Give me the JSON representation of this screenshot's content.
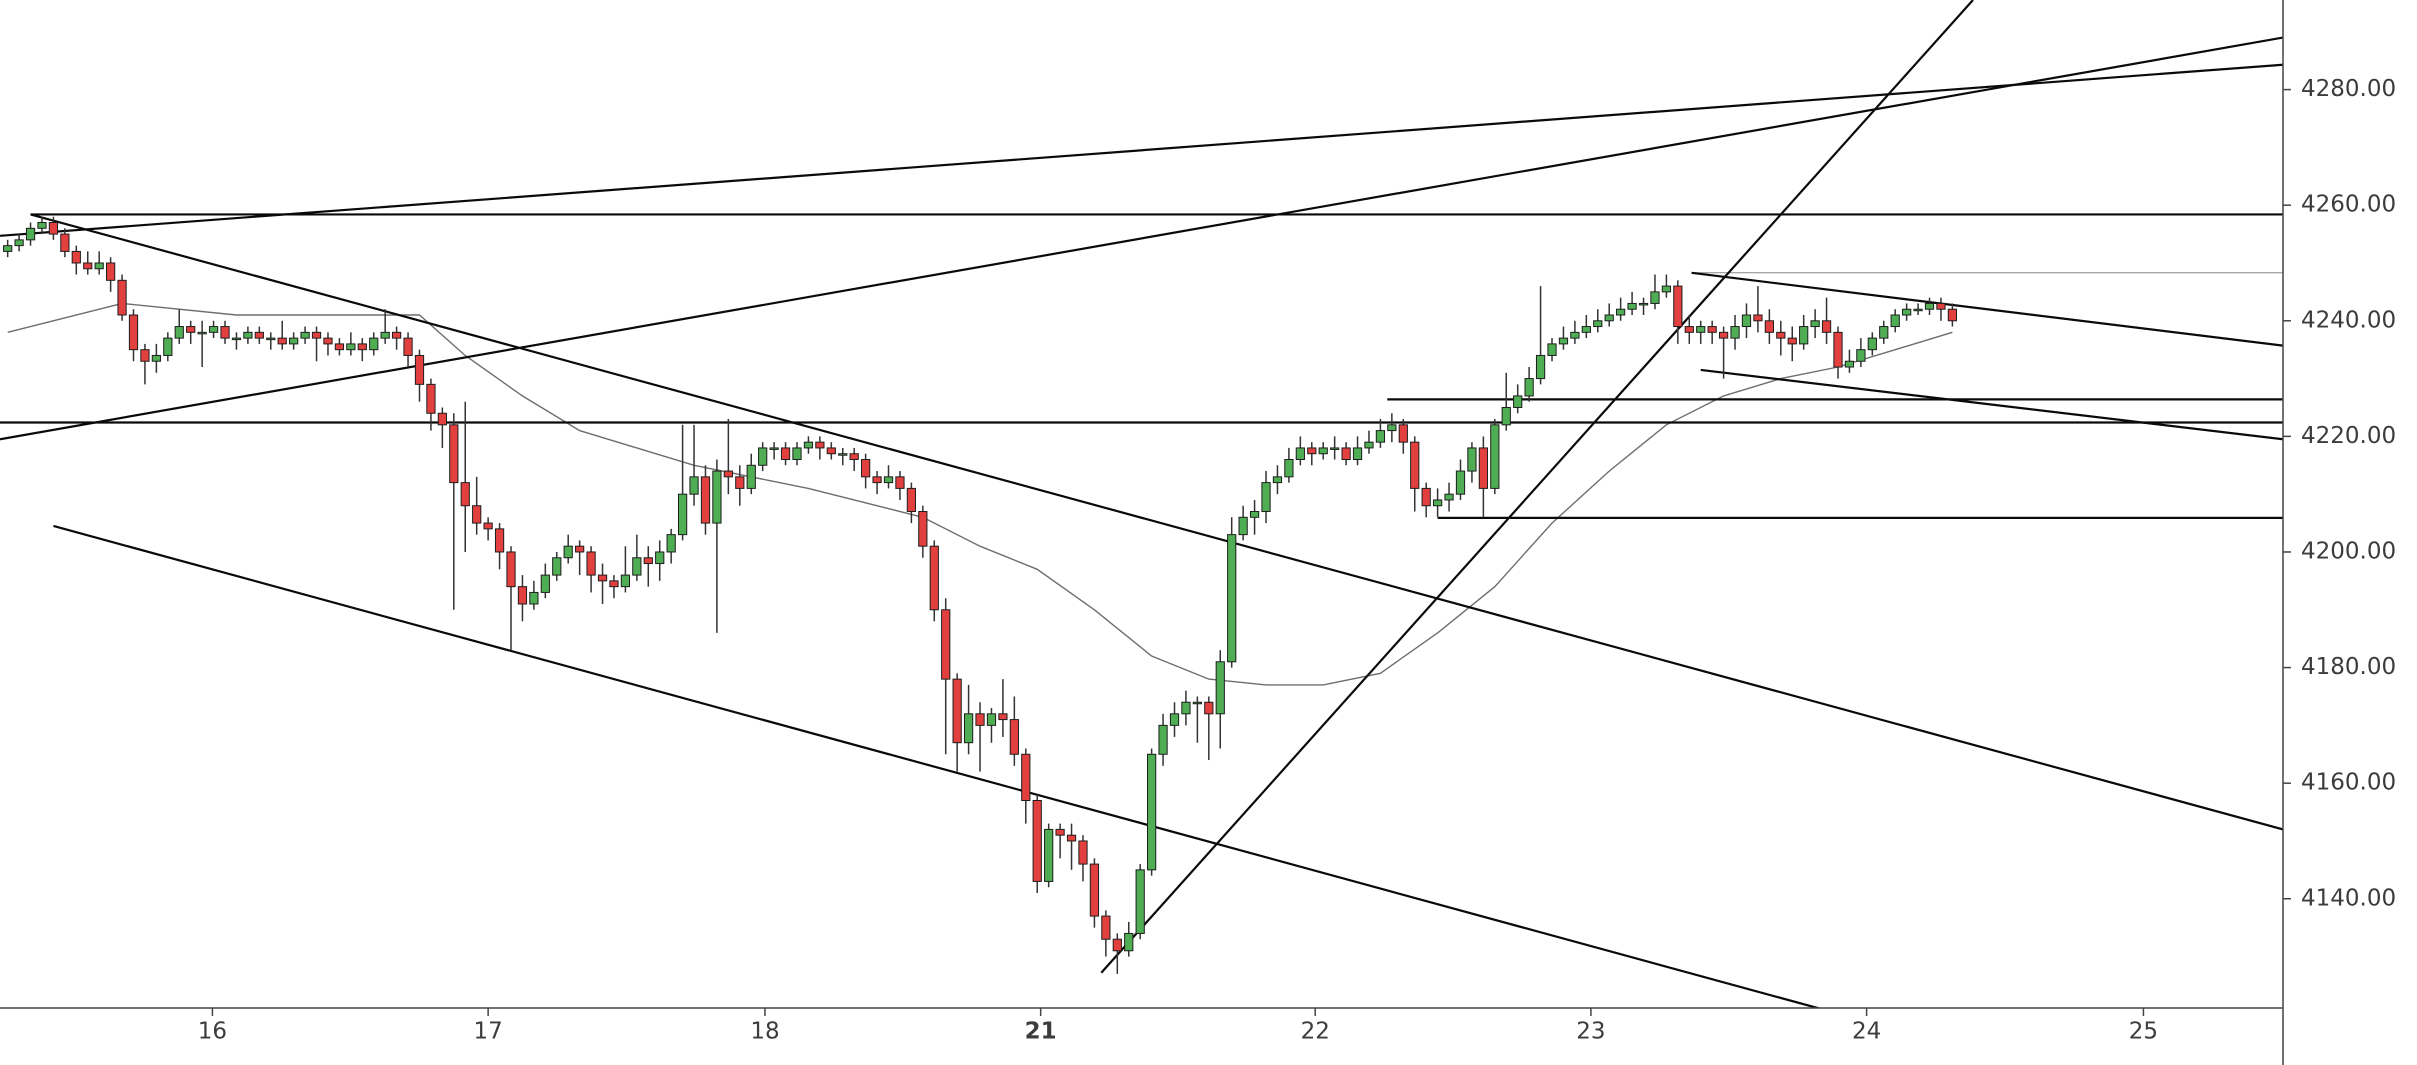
{
  "chart_data": {
    "type": "candlestick",
    "colors": {
      "up": "#4fae54",
      "down": "#e2403f",
      "outline": "#1e1e1e",
      "wick": "#333333"
    },
    "xlim": [
      -0.67,
      198.9
    ],
    "xticks": [
      {
        "value": 17.9,
        "label": "16"
      },
      {
        "value": 42.0,
        "label": "17"
      },
      {
        "value": 66.2,
        "label": "18"
      },
      {
        "value": 90.3,
        "label": "21",
        "bold": true
      },
      {
        "value": 114.3,
        "label": "22"
      },
      {
        "value": 138.4,
        "label": "23"
      },
      {
        "value": 162.5,
        "label": "24"
      },
      {
        "value": 186.7,
        "label": "25"
      }
    ],
    "ylim": [
      4121.1,
      4295.5
    ],
    "yticks": [
      {
        "value": 4140,
        "label": "4140.00"
      },
      {
        "value": 4160,
        "label": "4160.00"
      },
      {
        "value": 4180,
        "label": "4180.00"
      },
      {
        "value": 4200,
        "label": "4200.00"
      },
      {
        "value": 4220,
        "label": "4220.00"
      },
      {
        "value": 4240,
        "label": "4240.00"
      },
      {
        "value": 4260,
        "label": "4260.00"
      },
      {
        "value": 4280,
        "label": "4280.00"
      }
    ],
    "ohlc": [
      [
        4252,
        4254,
        4251,
        4253
      ],
      [
        4253,
        4255,
        4252,
        4254
      ],
      [
        4254,
        4257,
        4253,
        4256
      ],
      [
        4256,
        4258,
        4255,
        4257
      ],
      [
        4257,
        4258,
        4254,
        4255
      ],
      [
        4255,
        4256,
        4251,
        4252
      ],
      [
        4252,
        4253,
        4248,
        4250
      ],
      [
        4250,
        4252,
        4248,
        4249
      ],
      [
        4249,
        4252,
        4248,
        4250
      ],
      [
        4250,
        4251,
        4245,
        4247
      ],
      [
        4247,
        4248,
        4240,
        4241
      ],
      [
        4241,
        4242,
        4233,
        4235
      ],
      [
        4235,
        4236,
        4229,
        4233
      ],
      [
        4233,
        4236,
        4231,
        4234
      ],
      [
        4234,
        4238,
        4233,
        4237
      ],
      [
        4237,
        4242,
        4236,
        4239
      ],
      [
        4239,
        4240,
        4236,
        4238
      ],
      [
        4238,
        4240,
        4232,
        4238
      ],
      [
        4238,
        4240,
        4237,
        4239
      ],
      [
        4239,
        4240,
        4236,
        4237
      ],
      [
        4237,
        4238,
        4235,
        4237
      ],
      [
        4237,
        4239,
        4236,
        4238
      ],
      [
        4238,
        4239,
        4236,
        4237
      ],
      [
        4237,
        4238,
        4235,
        4237
      ],
      [
        4237,
        4240,
        4235,
        4236
      ],
      [
        4236,
        4238,
        4235,
        4237
      ],
      [
        4237,
        4239,
        4236,
        4238
      ],
      [
        4238,
        4239,
        4233,
        4237
      ],
      [
        4237,
        4238,
        4234,
        4236
      ],
      [
        4236,
        4237,
        4234,
        4235
      ],
      [
        4235,
        4238,
        4234,
        4236
      ],
      [
        4236,
        4237,
        4233,
        4235
      ],
      [
        4235,
        4238,
        4234,
        4237
      ],
      [
        4237,
        4242,
        4236,
        4238
      ],
      [
        4238,
        4239,
        4235,
        4237
      ],
      [
        4237,
        4238,
        4232,
        4234
      ],
      [
        4234,
        4235,
        4226,
        4229
      ],
      [
        4229,
        4230,
        4221,
        4224
      ],
      [
        4224,
        4225,
        4218,
        4222
      ],
      [
        4222,
        4224,
        4190,
        4212
      ],
      [
        4212,
        4226,
        4200,
        4208
      ],
      [
        4208,
        4213,
        4203,
        4205
      ],
      [
        4205,
        4206,
        4202,
        4204
      ],
      [
        4204,
        4205,
        4197,
        4200
      ],
      [
        4200,
        4201,
        4183,
        4194
      ],
      [
        4194,
        4196,
        4188,
        4191
      ],
      [
        4191,
        4195,
        4190,
        4193
      ],
      [
        4193,
        4198,
        4192,
        4196
      ],
      [
        4196,
        4200,
        4195,
        4199
      ],
      [
        4199,
        4203,
        4198,
        4201
      ],
      [
        4201,
        4202,
        4196,
        4200
      ],
      [
        4200,
        4201,
        4193,
        4196
      ],
      [
        4196,
        4198,
        4191,
        4195
      ],
      [
        4195,
        4196,
        4192,
        4194
      ],
      [
        4194,
        4201,
        4193,
        4196
      ],
      [
        4196,
        4203,
        4195,
        4199
      ],
      [
        4199,
        4201,
        4194,
        4198
      ],
      [
        4198,
        4202,
        4195,
        4200
      ],
      [
        4200,
        4204,
        4198,
        4203
      ],
      [
        4203,
        4222,
        4202,
        4210
      ],
      [
        4210,
        4222,
        4208,
        4213
      ],
      [
        4213,
        4215,
        4203,
        4205
      ],
      [
        4205,
        4216,
        4186,
        4214
      ],
      [
        4214,
        4223,
        4210,
        4213
      ],
      [
        4213,
        4215,
        4208,
        4211
      ],
      [
        4211,
        4217,
        4210,
        4215
      ],
      [
        4215,
        4219,
        4214,
        4218
      ],
      [
        4218,
        4219,
        4216,
        4218
      ],
      [
        4218,
        4219,
        4215,
        4216
      ],
      [
        4216,
        4219,
        4215,
        4218
      ],
      [
        4218,
        4220,
        4217,
        4219
      ],
      [
        4219,
        4220,
        4216,
        4218
      ],
      [
        4218,
        4219,
        4216,
        4217
      ],
      [
        4217,
        4218,
        4215,
        4217
      ],
      [
        4217,
        4218,
        4214,
        4216
      ],
      [
        4216,
        4217,
        4211,
        4213
      ],
      [
        4213,
        4214,
        4210,
        4212
      ],
      [
        4212,
        4215,
        4211,
        4213
      ],
      [
        4213,
        4214,
        4209,
        4211
      ],
      [
        4211,
        4212,
        4205,
        4207
      ],
      [
        4207,
        4208,
        4199,
        4201
      ],
      [
        4201,
        4202,
        4188,
        4190
      ],
      [
        4190,
        4192,
        4165,
        4178
      ],
      [
        4178,
        4179,
        4162,
        4167
      ],
      [
        4167,
        4177,
        4165,
        4172
      ],
      [
        4172,
        4174,
        4162,
        4170
      ],
      [
        4170,
        4173,
        4167,
        4172
      ],
      [
        4172,
        4178,
        4168,
        4171
      ],
      [
        4171,
        4175,
        4163,
        4165
      ],
      [
        4165,
        4166,
        4153,
        4157
      ],
      [
        4157,
        4158,
        4141,
        4143
      ],
      [
        4143,
        4153,
        4142,
        4152
      ],
      [
        4152,
        4153,
        4147,
        4151
      ],
      [
        4151,
        4153,
        4145,
        4150
      ],
      [
        4150,
        4151,
        4143,
        4146
      ],
      [
        4146,
        4147,
        4135,
        4137
      ],
      [
        4137,
        4138,
        4130,
        4133
      ],
      [
        4133,
        4134,
        4127,
        4131
      ],
      [
        4131,
        4136,
        4130,
        4134
      ],
      [
        4134,
        4146,
        4133,
        4145
      ],
      [
        4145,
        4166,
        4144,
        4165
      ],
      [
        4165,
        4172,
        4163,
        4170
      ],
      [
        4170,
        4174,
        4168,
        4172
      ],
      [
        4172,
        4176,
        4170,
        4174
      ],
      [
        4174,
        4175,
        4167,
        4174
      ],
      [
        4174,
        4175,
        4164,
        4172
      ],
      [
        4172,
        4183,
        4166,
        4181
      ],
      [
        4181,
        4206,
        4180,
        4203
      ],
      [
        4203,
        4208,
        4202,
        4206
      ],
      [
        4206,
        4209,
        4203,
        4207
      ],
      [
        4207,
        4214,
        4205,
        4212
      ],
      [
        4212,
        4215,
        4210,
        4213
      ],
      [
        4213,
        4218,
        4212,
        4216
      ],
      [
        4216,
        4220,
        4215,
        4218
      ],
      [
        4218,
        4219,
        4215,
        4217
      ],
      [
        4217,
        4219,
        4216,
        4218
      ],
      [
        4218,
        4220,
        4216,
        4218
      ],
      [
        4218,
        4219,
        4215,
        4216
      ],
      [
        4216,
        4220,
        4215,
        4218
      ],
      [
        4218,
        4221,
        4217,
        4219
      ],
      [
        4219,
        4223,
        4218,
        4221
      ],
      [
        4221,
        4224,
        4219,
        4222
      ],
      [
        4222,
        4223,
        4217,
        4219
      ],
      [
        4219,
        4220,
        4207,
        4211
      ],
      [
        4211,
        4212,
        4206,
        4208
      ],
      [
        4208,
        4211,
        4206,
        4209
      ],
      [
        4209,
        4212,
        4207,
        4210
      ],
      [
        4210,
        4216,
        4209,
        4214
      ],
      [
        4214,
        4219,
        4212,
        4218
      ],
      [
        4218,
        4220,
        4206,
        4211
      ],
      [
        4211,
        4223,
        4210,
        4222
      ],
      [
        4222,
        4231,
        4221,
        4225
      ],
      [
        4225,
        4229,
        4224,
        4227
      ],
      [
        4227,
        4232,
        4226,
        4230
      ],
      [
        4230,
        4246,
        4229,
        4234
      ],
      [
        4234,
        4237,
        4233,
        4236
      ],
      [
        4236,
        4239,
        4235,
        4237
      ],
      [
        4237,
        4240,
        4236,
        4238
      ],
      [
        4238,
        4241,
        4237,
        4239
      ],
      [
        4239,
        4242,
        4238,
        4240
      ],
      [
        4240,
        4243,
        4239,
        4241
      ],
      [
        4241,
        4244,
        4240,
        4242
      ],
      [
        4242,
        4245,
        4241,
        4243
      ],
      [
        4243,
        4244,
        4241,
        4243
      ],
      [
        4243,
        4248,
        4242,
        4245
      ],
      [
        4245,
        4248,
        4244,
        4246
      ],
      [
        4246,
        4247,
        4236,
        4239
      ],
      [
        4239,
        4241,
        4236,
        4238
      ],
      [
        4238,
        4240,
        4236,
        4239
      ],
      [
        4239,
        4240,
        4236,
        4238
      ],
      [
        4238,
        4239,
        4230,
        4237
      ],
      [
        4237,
        4241,
        4235,
        4239
      ],
      [
        4239,
        4243,
        4237,
        4241
      ],
      [
        4241,
        4246,
        4238,
        4240
      ],
      [
        4240,
        4242,
        4236,
        4238
      ],
      [
        4238,
        4240,
        4234,
        4237
      ],
      [
        4237,
        4239,
        4233,
        4236
      ],
      [
        4236,
        4241,
        4235,
        4239
      ],
      [
        4239,
        4242,
        4237,
        4240
      ],
      [
        4240,
        4244,
        4236,
        4238
      ],
      [
        4238,
        4239,
        4230,
        4232
      ],
      [
        4232,
        4235,
        4231,
        4233
      ],
      [
        4233,
        4237,
        4232,
        4235
      ],
      [
        4235,
        4238,
        4234,
        4237
      ],
      [
        4237,
        4240,
        4236,
        4239
      ],
      [
        4239,
        4242,
        4238,
        4241
      ],
      [
        4241,
        4243,
        4240,
        4242
      ],
      [
        4242,
        4243,
        4241,
        4242
      ],
      [
        4242,
        4244,
        4241,
        4243
      ],
      [
        4243,
        4244,
        4240,
        4242
      ],
      [
        4242,
        4243,
        4239,
        4240
      ]
    ],
    "moving_average": {
      "color": "#6e6e6e",
      "x": [
        0,
        10,
        20,
        30,
        36,
        40,
        45,
        50,
        60,
        70,
        80,
        85,
        90,
        95,
        100,
        105,
        110,
        115,
        120,
        125,
        130,
        135,
        140,
        145,
        150,
        155,
        160,
        165,
        170
      ],
      "values": [
        4238,
        4243,
        4241,
        4241,
        4241,
        4234,
        4227,
        4221,
        4215,
        4211,
        4206,
        4201,
        4197,
        4190,
        4182,
        4178,
        4177,
        4177,
        4179,
        4186,
        4194,
        4205,
        4214,
        4222,
        4227,
        4230,
        4232,
        4235,
        4238
      ]
    },
    "trendlines": [
      [
        -0.67,
        4219.5,
        198.9,
        4289
      ],
      [
        -0.67,
        4254.7,
        198.9,
        4284.3
      ],
      [
        95.6,
        4127.2,
        171.8,
        4295.5
      ],
      [
        2,
        4258.4,
        198.9,
        4258.4
      ],
      [
        -0.67,
        4222.4,
        198.9,
        4222.4
      ],
      [
        2,
        4258.4,
        198.9,
        4152
      ],
      [
        4,
        4204.5,
        158.4,
        4121
      ],
      [
        147.2,
        4248.3,
        198.9,
        4235.7
      ],
      [
        148,
        4231.5,
        198.9,
        4219.5
      ],
      [
        120.6,
        4226.4,
        198.9,
        4226.4
      ],
      [
        125,
        4205.9,
        198.9,
        4205.9
      ]
    ],
    "thin_lines": [
      [
        147.2,
        4248.3,
        198.9,
        4248.3
      ]
    ],
    "line_color": "#0a0a0a"
  }
}
